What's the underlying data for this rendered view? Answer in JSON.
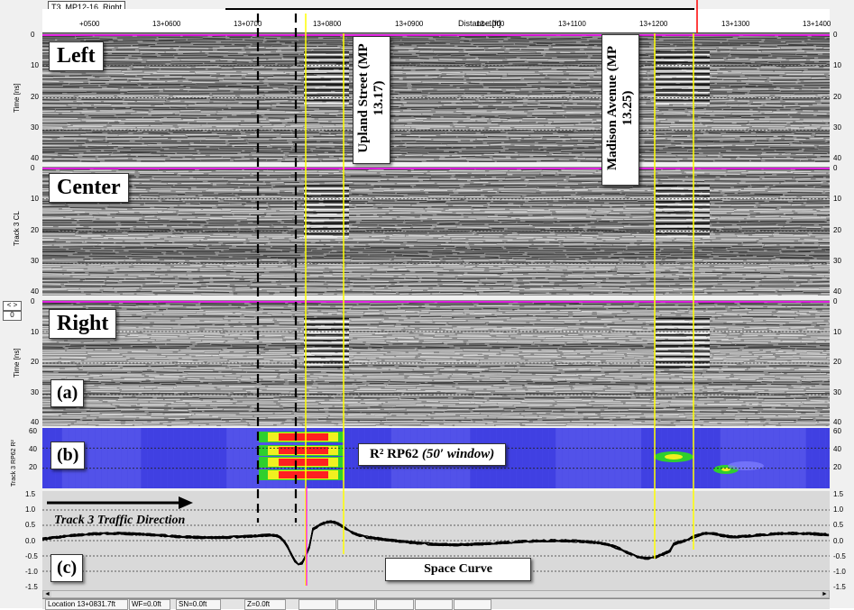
{
  "window": {
    "file_tab": "T3_MP12-16_Right",
    "distance_axis_title": "Distance [ft]"
  },
  "distance_ticks": [
    "+0500",
    "13+0600",
    "13+0700",
    "13+0800",
    "13+0900",
    "13+1000",
    "13+1100",
    "13+1200",
    "13+1300",
    "13+1400"
  ],
  "time_axis": {
    "label": "Time [ns]",
    "ticks": [
      "0",
      "10",
      "20",
      "30",
      "40"
    ]
  },
  "center_axis_label": "Track 3 CL",
  "rp_axis": {
    "label": "Track 3 RP62 R²",
    "ticks": [
      "60",
      "40",
      "20"
    ]
  },
  "space_axis": {
    "ticks": [
      "1.5",
      "1.0",
      "0.5",
      "0.0",
      "-0.5",
      "-1.0",
      "-1.5"
    ]
  },
  "annotations": {
    "left": "Left",
    "center": "Center",
    "right": "Right",
    "a": "(a)",
    "b": "(b)",
    "c": "(c)",
    "upland": "Upland Street (MP 13.17)",
    "madison": "Madison Avenue (MP 13.25)",
    "rp_title_prefix": "R² RP62 ",
    "rp_title_italic": "(50′ window)",
    "traffic": "Track 3 Traffic Direction",
    "space_curve": "Space Curve"
  },
  "controls": {
    "nav": "< >",
    "zero": "0",
    "scroll_left": "◄",
    "scroll_right": "►"
  },
  "status": {
    "location": "Location 13+0831.7ft",
    "wf": "WF=0.0ft",
    "sn": "SN=0.0ft",
    "z": "Z=0.0ft"
  },
  "colors": {
    "yellow_marker": "#ffff00",
    "red_marker": "#ff0000",
    "magenta_marker": "#ff00ff",
    "heat_bg": "#3f3fe8"
  }
}
